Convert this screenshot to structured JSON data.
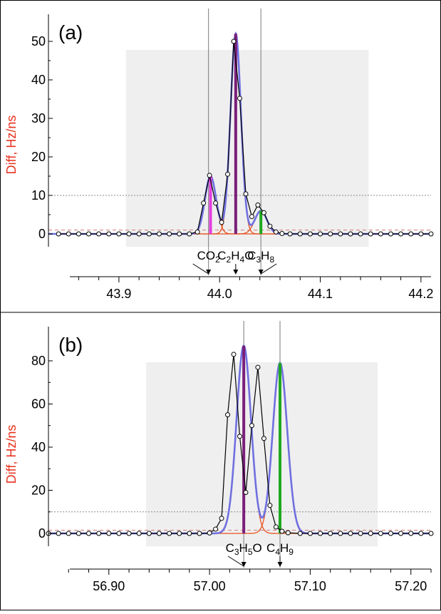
{
  "chart_data": [
    {
      "panel": "(a)",
      "type": "line",
      "ylabel": "Diff, Hz/ns",
      "xlim": [
        43.83,
        44.21
      ],
      "ylim": [
        -4,
        56
      ],
      "x_ticks": [
        "43.9",
        "44.0",
        "44.1",
        "44.2"
      ],
      "x_tick_values": [
        43.9,
        44.0,
        44.1,
        44.2
      ],
      "y_ticks": [
        "0",
        "10",
        "20",
        "30",
        "40",
        "50"
      ],
      "y_tick_values": [
        0,
        10,
        20,
        30,
        40,
        50
      ],
      "shaded_range": [
        43.907,
        44.148
      ],
      "hline_dotted": 10,
      "hline_dashed": 1,
      "black_trace": [
        [
          43.84,
          0
        ],
        [
          43.85,
          0
        ],
        [
          43.86,
          0
        ],
        [
          43.87,
          0
        ],
        [
          43.88,
          0
        ],
        [
          43.89,
          0
        ],
        [
          43.9,
          0
        ],
        [
          43.91,
          0
        ],
        [
          43.92,
          0
        ],
        [
          43.93,
          0
        ],
        [
          43.94,
          0
        ],
        [
          43.95,
          0
        ],
        [
          43.96,
          0
        ],
        [
          43.97,
          0
        ],
        [
          43.978,
          0.5
        ],
        [
          43.984,
          8
        ],
        [
          43.99,
          15.2
        ],
        [
          43.996,
          8
        ],
        [
          44.002,
          3
        ],
        [
          44.008,
          15.5
        ],
        [
          44.014,
          50
        ],
        [
          44.02,
          35.2
        ],
        [
          44.026,
          10.4
        ],
        [
          44.032,
          4.5
        ],
        [
          44.038,
          7.5
        ],
        [
          44.044,
          5.5
        ],
        [
          44.05,
          2
        ],
        [
          44.056,
          0.5
        ],
        [
          44.062,
          0.1
        ],
        [
          44.07,
          0
        ],
        [
          44.08,
          0
        ],
        [
          44.09,
          0
        ],
        [
          44.1,
          0
        ],
        [
          44.11,
          0
        ],
        [
          44.12,
          0
        ],
        [
          44.13,
          0
        ],
        [
          44.14,
          0
        ],
        [
          44.15,
          0
        ],
        [
          44.16,
          0
        ],
        [
          44.17,
          0
        ],
        [
          44.18,
          0
        ],
        [
          44.19,
          0
        ],
        [
          44.2,
          0
        ],
        [
          44.21,
          0
        ]
      ],
      "peaks": [
        {
          "label": "CO",
          "sub": "2",
          "x": 43.991,
          "height": 15,
          "color": "#e43fe0",
          "sigma": 0.0055
        },
        {
          "label": "C",
          "sub": "2",
          "label2": "H",
          "sub2": "4",
          "label3": "O",
          "x": 44.016,
          "height": 52,
          "color": "#7a1f7a",
          "sigma": 0.0052
        },
        {
          "label": "C",
          "sub": "3",
          "label2": "H",
          "sub2": "8",
          "x": 44.041,
          "height": 6,
          "color": "#1fa81f",
          "sigma": 0.006
        }
      ],
      "vlines": [
        43.989,
        44.041
      ],
      "annotations": [
        {
          "text": "CO",
          "sub": "2",
          "tail": "",
          "arrow_x": 43.989
        },
        {
          "text": "C",
          "sub": "2",
          "tail": "H",
          "sub2": "4",
          "tail2": "O",
          "arrow_x": 44.016
        },
        {
          "text": "C",
          "sub": "3",
          "tail": "H",
          "sub2": "8",
          "arrow_x": 44.041
        }
      ]
    },
    {
      "panel": "(b)",
      "type": "line",
      "ylabel": "Diff, Hz/ns",
      "xlim": [
        56.84,
        57.22
      ],
      "ylim": [
        -6,
        92
      ],
      "x_ticks": [
        "56.90",
        "57.00",
        "57.10",
        "57.20"
      ],
      "x_tick_values": [
        56.9,
        57.0,
        57.1,
        57.2
      ],
      "y_ticks": [
        "0",
        "20",
        "40",
        "60",
        "80"
      ],
      "y_tick_values": [
        0,
        20,
        40,
        60,
        80
      ],
      "shaded_range": [
        56.937,
        57.167
      ],
      "hline_dotted": 10,
      "hline_dashed": 1.5,
      "black_trace": [
        [
          56.84,
          0
        ],
        [
          56.85,
          0
        ],
        [
          56.86,
          0
        ],
        [
          56.87,
          0
        ],
        [
          56.88,
          0
        ],
        [
          56.89,
          0
        ],
        [
          56.9,
          0
        ],
        [
          56.91,
          0
        ],
        [
          56.92,
          0
        ],
        [
          56.93,
          0
        ],
        [
          56.94,
          0
        ],
        [
          56.95,
          0
        ],
        [
          56.96,
          0
        ],
        [
          56.97,
          0
        ],
        [
          56.98,
          0
        ],
        [
          56.99,
          0
        ],
        [
          57.0,
          0.2
        ],
        [
          57.006,
          2
        ],
        [
          57.012,
          7
        ],
        [
          57.018,
          55
        ],
        [
          57.024,
          83
        ],
        [
          57.03,
          45
        ],
        [
          57.036,
          19
        ],
        [
          57.042,
          50
        ],
        [
          57.048,
          77
        ],
        [
          57.054,
          44
        ],
        [
          57.06,
          13
        ],
        [
          57.066,
          3
        ],
        [
          57.072,
          1
        ],
        [
          57.078,
          0.3
        ],
        [
          57.09,
          0
        ],
        [
          57.1,
          0
        ],
        [
          57.11,
          0
        ],
        [
          57.12,
          0
        ],
        [
          57.13,
          0
        ],
        [
          57.14,
          0
        ],
        [
          57.15,
          0
        ],
        [
          57.16,
          0
        ],
        [
          57.17,
          0
        ],
        [
          57.18,
          0
        ],
        [
          57.19,
          0
        ],
        [
          57.2,
          0
        ],
        [
          57.21,
          0
        ],
        [
          57.22,
          0
        ]
      ],
      "peaks": [
        {
          "label": "C",
          "sub": "3",
          "label2": "H",
          "sub2": "5",
          "label3": "O",
          "x": 57.034,
          "height": 87,
          "color": "#7a1f7a",
          "sigma": 0.0072
        },
        {
          "label": "C",
          "sub": "4",
          "label2": "H",
          "sub2": "9",
          "x": 57.07,
          "height": 79,
          "color": "#1fa81f",
          "sigma": 0.0072
        }
      ],
      "vlines": [
        57.034,
        57.07
      ],
      "annotations": [
        {
          "text": "C",
          "sub": "3",
          "tail": "H",
          "sub2": "5",
          "tail2": "O",
          "arrow_x": 57.034
        },
        {
          "text": "C",
          "sub": "4",
          "tail": "H",
          "sub2": "9",
          "arrow_x": 57.07
        }
      ]
    }
  ]
}
